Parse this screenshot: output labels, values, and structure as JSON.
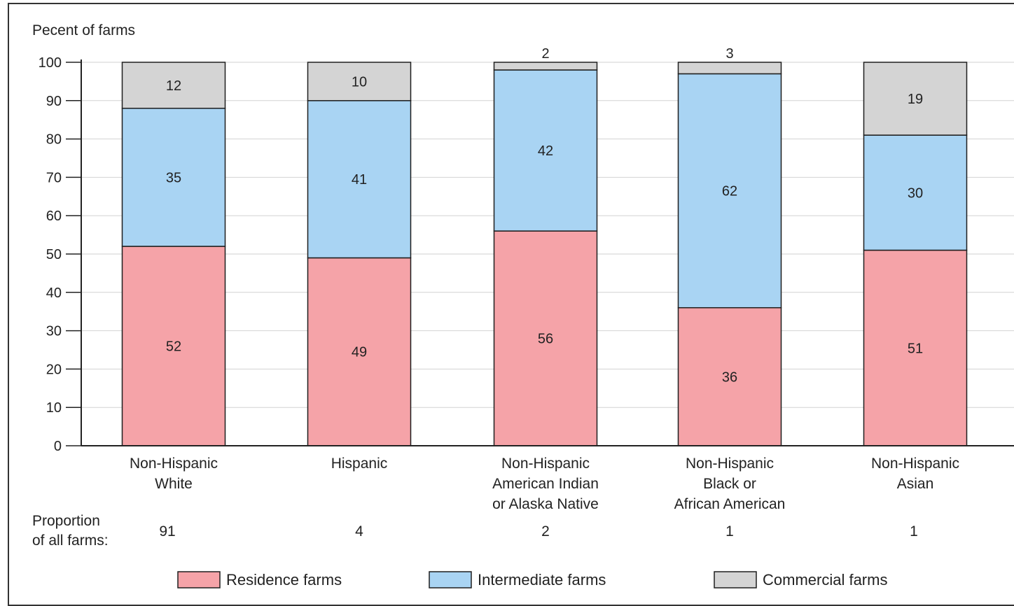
{
  "chart_data": {
    "type": "bar",
    "stacked": true,
    "ylabel": "Pecent of farms",
    "ylim": [
      0,
      100
    ],
    "yticks": [
      0,
      10,
      20,
      30,
      40,
      50,
      60,
      70,
      80,
      90,
      100
    ],
    "grid": true,
    "categories": [
      [
        "Non-Hispanic",
        "White"
      ],
      [
        "Hispanic"
      ],
      [
        "Non-Hispanic",
        "American Indian",
        "or Alaska Native"
      ],
      [
        "Non-Hispanic",
        "Black or",
        "African American"
      ],
      [
        "Non-Hispanic",
        "Asian"
      ]
    ],
    "series": [
      {
        "name": "Residence farms",
        "color": "#f5a3a8",
        "values": [
          52,
          49,
          56,
          36,
          51
        ]
      },
      {
        "name": "Intermediate farms",
        "color": "#a9d4f3",
        "values": [
          35,
          41,
          42,
          62,
          30
        ]
      },
      {
        "name": "Commercial farms",
        "color": "#d4d4d4",
        "values": [
          12,
          10,
          2,
          3,
          19
        ]
      }
    ],
    "stack_tops": [
      [
        52,
        88,
        100
      ],
      [
        49,
        90,
        100
      ],
      [
        56,
        98,
        100
      ],
      [
        36,
        97,
        100
      ],
      [
        51,
        81,
        100
      ]
    ],
    "proportion_label": [
      "Proportion",
      "of all farms:"
    ],
    "proportion_values": [
      "91",
      "4",
      "2",
      "1",
      "1"
    ],
    "legend_position": "bottom"
  }
}
